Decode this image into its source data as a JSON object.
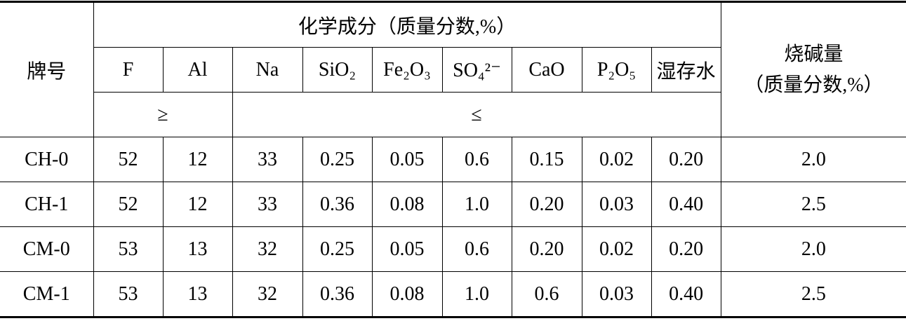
{
  "table": {
    "header": {
      "brand": "牌号",
      "group": "化学成分（质量分数,%）",
      "loss_title": "烧碱量",
      "loss_unit": "（质量分数,%）",
      "columns": [
        "F",
        "Al",
        "Na",
        "SiO₂",
        "Fe₂O₃",
        "SO₄²⁻",
        "CaO",
        "P₂O₅",
        "湿存水"
      ],
      "min_mark": "≥",
      "max_mark": "≤"
    },
    "rows": [
      [
        "CH-0",
        "52",
        "12",
        "33",
        "0.25",
        "0.05",
        "0.6",
        "0.15",
        "0.02",
        "0.20",
        "2.0"
      ],
      [
        "CH-1",
        "52",
        "12",
        "33",
        "0.36",
        "0.08",
        "1.0",
        "0.20",
        "0.03",
        "0.40",
        "2.5"
      ],
      [
        "CM-0",
        "53",
        "13",
        "32",
        "0.25",
        "0.05",
        "0.6",
        "0.20",
        "0.02",
        "0.20",
        "2.0"
      ],
      [
        "CM-1",
        "53",
        "13",
        "32",
        "0.36",
        "0.08",
        "1.0",
        "0.6",
        "0.03",
        "0.40",
        "2.5"
      ]
    ]
  }
}
